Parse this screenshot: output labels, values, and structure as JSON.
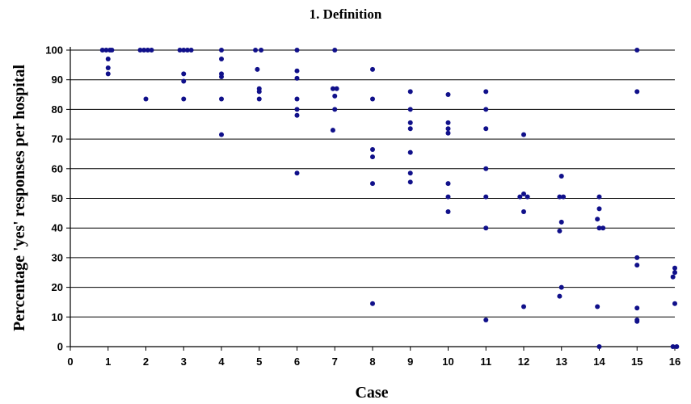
{
  "chart_data": {
    "type": "scatter",
    "title": "1. Definition",
    "xlabel": "Case",
    "ylabel": "Percentage 'yes' responses per hospital",
    "xlim": [
      0,
      16
    ],
    "ylim": [
      0,
      100
    ],
    "xticks": [
      "0",
      "1",
      "2",
      "3",
      "4",
      "5",
      "6",
      "7",
      "8",
      "9",
      "10",
      "11",
      "12",
      "13",
      "14",
      "15",
      "16"
    ],
    "yticks": [
      "0",
      "10",
      "20",
      "30",
      "40",
      "50",
      "60",
      "70",
      "80",
      "90",
      "100"
    ],
    "grid": "horizontal",
    "marker_color": "#10108a",
    "points": [
      [
        0.85,
        100
      ],
      [
        0.95,
        100
      ],
      [
        1.05,
        100
      ],
      [
        1.1,
        100
      ],
      [
        1,
        97
      ],
      [
        1,
        94
      ],
      [
        1,
        92
      ],
      [
        1.85,
        100
      ],
      [
        1.95,
        100
      ],
      [
        2.05,
        100
      ],
      [
        2.15,
        100
      ],
      [
        2,
        83.5
      ],
      [
        2.9,
        100
      ],
      [
        3,
        100
      ],
      [
        3.1,
        100
      ],
      [
        3.2,
        100
      ],
      [
        3,
        92
      ],
      [
        3,
        89.5
      ],
      [
        3,
        83.5
      ],
      [
        4,
        100
      ],
      [
        4,
        97
      ],
      [
        4,
        92
      ],
      [
        4,
        91
      ],
      [
        4,
        83.5
      ],
      [
        4,
        71.5
      ],
      [
        4.9,
        100
      ],
      [
        5.05,
        100
      ],
      [
        4.95,
        93.5
      ],
      [
        5,
        87
      ],
      [
        5,
        86
      ],
      [
        5,
        83.5
      ],
      [
        6,
        100
      ],
      [
        6,
        93
      ],
      [
        6,
        90.5
      ],
      [
        6,
        83.5
      ],
      [
        6,
        80
      ],
      [
        6,
        78
      ],
      [
        6,
        58.5
      ],
      [
        7,
        100
      ],
      [
        6.95,
        87
      ],
      [
        7.05,
        87
      ],
      [
        7,
        84.5
      ],
      [
        7,
        80
      ],
      [
        6.95,
        73
      ],
      [
        8,
        93.5
      ],
      [
        8,
        83.5
      ],
      [
        8,
        66.5
      ],
      [
        8,
        64
      ],
      [
        8,
        55
      ],
      [
        8,
        14.5
      ],
      [
        9,
        86
      ],
      [
        9,
        80
      ],
      [
        9,
        75.5
      ],
      [
        9,
        73.5
      ],
      [
        9,
        65.5
      ],
      [
        9,
        58.5
      ],
      [
        9,
        55.5
      ],
      [
        10,
        85
      ],
      [
        10,
        75.5
      ],
      [
        10,
        73.5
      ],
      [
        10,
        72
      ],
      [
        10,
        55
      ],
      [
        10,
        50.5
      ],
      [
        10,
        45.5
      ],
      [
        11,
        86
      ],
      [
        11,
        80
      ],
      [
        11,
        73.5
      ],
      [
        11,
        60
      ],
      [
        11,
        50.5
      ],
      [
        11,
        40
      ],
      [
        11,
        9
      ],
      [
        12,
        71.5
      ],
      [
        11.9,
        50.5
      ],
      [
        12,
        51.5
      ],
      [
        12.1,
        50.5
      ],
      [
        12,
        45.5
      ],
      [
        12,
        13.5
      ],
      [
        13,
        57.5
      ],
      [
        12.95,
        50.5
      ],
      [
        13.05,
        50.5
      ],
      [
        13,
        42
      ],
      [
        12.95,
        39
      ],
      [
        13,
        20
      ],
      [
        12.95,
        17
      ],
      [
        14,
        50.5
      ],
      [
        14,
        46.5
      ],
      [
        13.95,
        43
      ],
      [
        14,
        40
      ],
      [
        14.1,
        40
      ],
      [
        13.95,
        13.5
      ],
      [
        14,
        0
      ],
      [
        15,
        100
      ],
      [
        15,
        86
      ],
      [
        15,
        30
      ],
      [
        15,
        27.5
      ],
      [
        15,
        13
      ],
      [
        15,
        9
      ],
      [
        15,
        8.5
      ],
      [
        16,
        26.5
      ],
      [
        16,
        25
      ],
      [
        15.95,
        23.5
      ],
      [
        16,
        14.5
      ],
      [
        15.95,
        0
      ],
      [
        16.05,
        0
      ]
    ]
  }
}
